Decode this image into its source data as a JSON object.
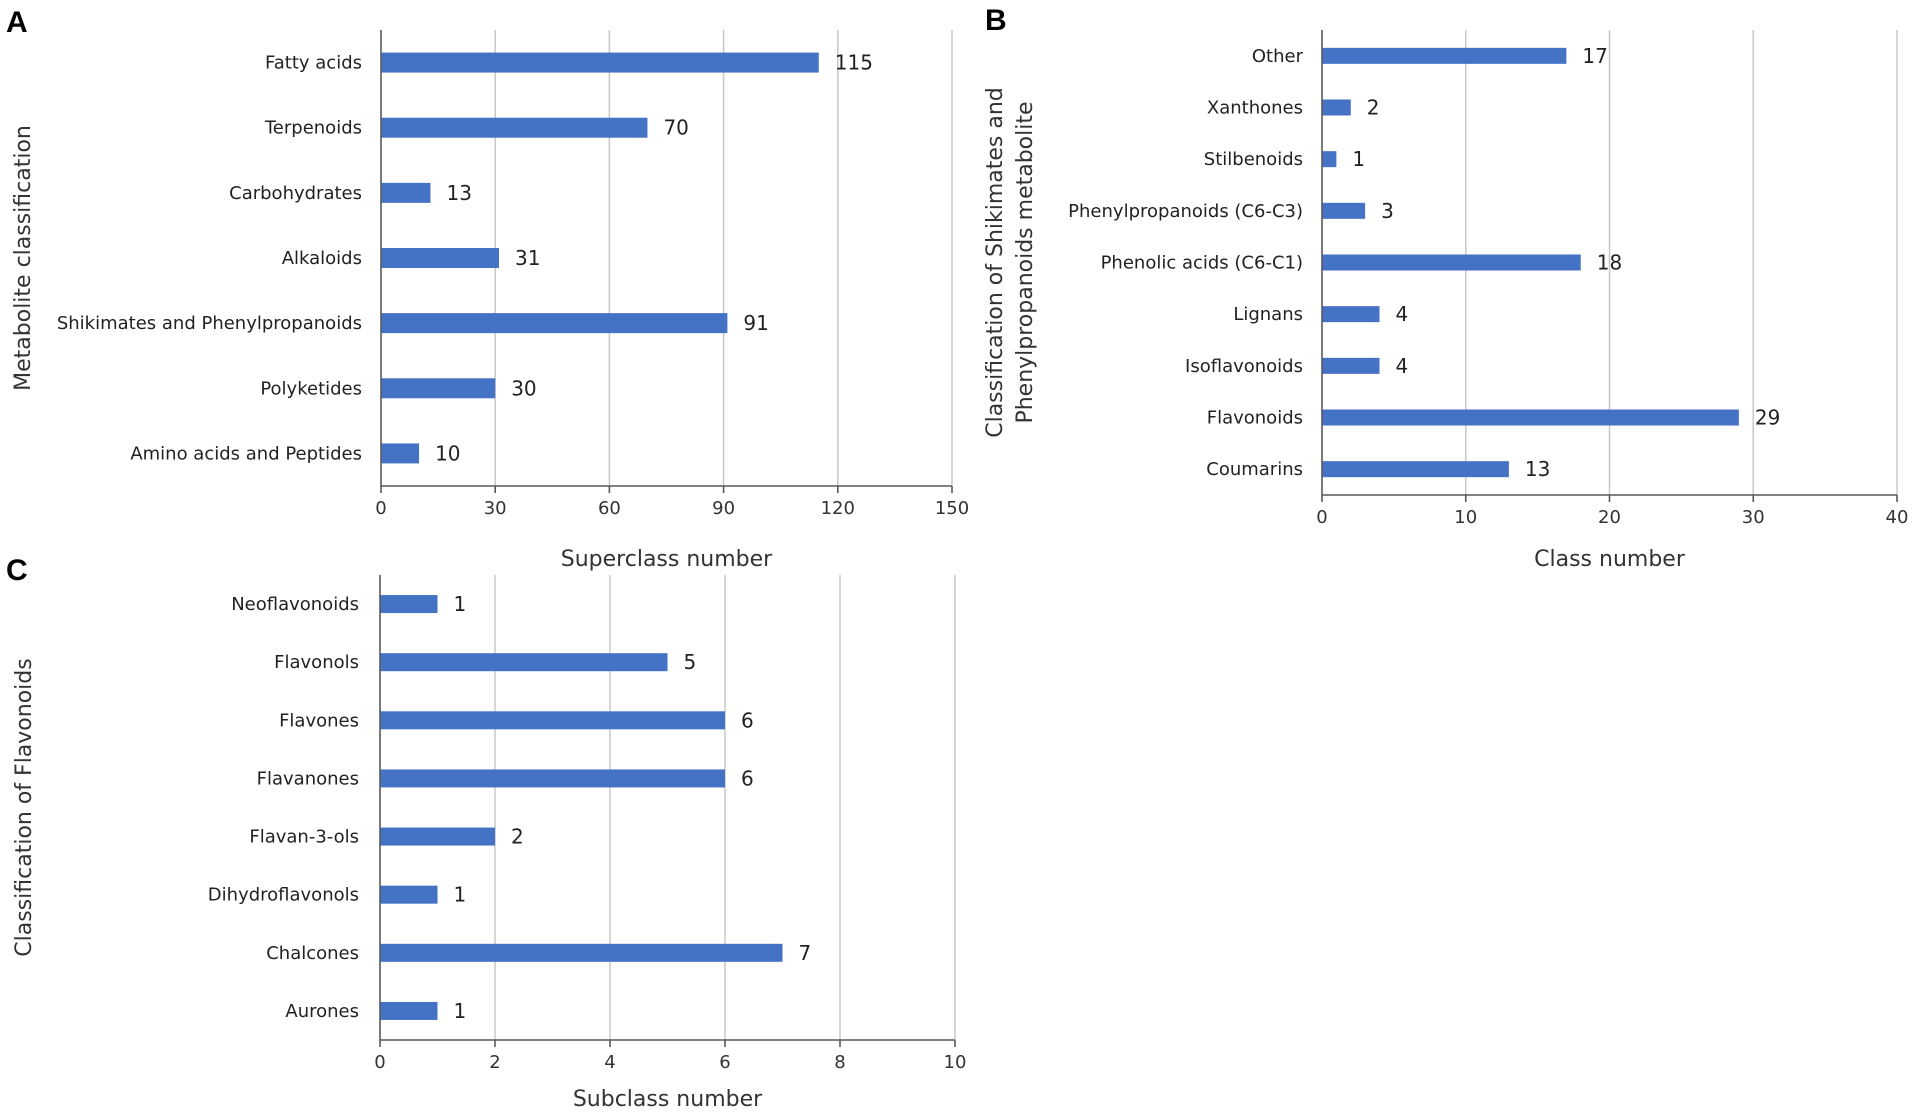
{
  "chart_data": [
    {
      "panel": "A",
      "type": "bar",
      "orientation": "horizontal",
      "title": "",
      "xlabel": "Superclass number",
      "ylabel": "Metabolite classification",
      "categories": [
        "Fatty acids",
        "Terpenoids",
        "Carbohydrates",
        "Alkaloids",
        "Shikimates and Phenylpropanoids",
        "Polyketides",
        "Amino acids and Peptides"
      ],
      "values": [
        115,
        70,
        13,
        31,
        91,
        30,
        10
      ],
      "xlim": [
        0,
        150
      ],
      "xticks": [
        0,
        30,
        60,
        90,
        120,
        150
      ],
      "grid": true,
      "bar_color": "#4472c4"
    },
    {
      "panel": "B",
      "type": "bar",
      "orientation": "horizontal",
      "title": "",
      "xlabel": "Class number",
      "ylabel": [
        "Classification of Shikimates and",
        "Phenylpropanoids metabolite"
      ],
      "categories": [
        "Other",
        "Xanthones",
        "Stilbenoids",
        "Phenylpropanoids (C6-C3)",
        "Phenolic acids (C6-C1)",
        "Lignans",
        "Isoflavonoids",
        "Flavonoids",
        "Coumarins"
      ],
      "values": [
        17,
        2,
        1,
        3,
        18,
        4,
        4,
        29,
        13
      ],
      "xlim": [
        0,
        40
      ],
      "xticks": [
        0,
        10,
        20,
        30,
        40
      ],
      "grid": true,
      "bar_color": "#4472c4"
    },
    {
      "panel": "C",
      "type": "bar",
      "orientation": "horizontal",
      "title": "",
      "xlabel": "Subclass number",
      "ylabel": "Classification of Flavonoids",
      "categories": [
        "Neoflavonoids",
        "Flavonols",
        "Flavones",
        "Flavanones",
        "Flavan-3-ols",
        "Dihydroflavonols",
        "Chalcones",
        "Aurones"
      ],
      "values": [
        1,
        5,
        6,
        6,
        2,
        1,
        7,
        1
      ],
      "xlim": [
        0,
        10
      ],
      "xticks": [
        0,
        2,
        4,
        6,
        8,
        10
      ],
      "grid": true,
      "bar_color": "#4472c4"
    }
  ]
}
